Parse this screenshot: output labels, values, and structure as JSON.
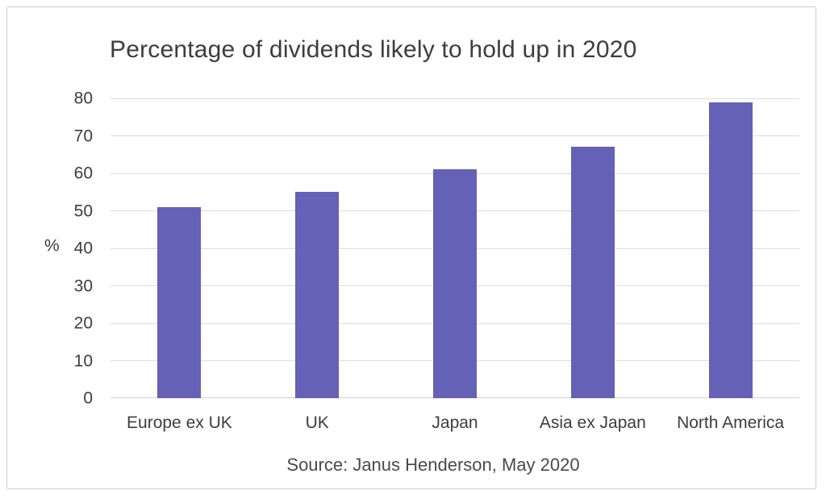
{
  "chart_data": {
    "type": "bar",
    "title": "Percentage of dividends likely to hold up in 2020",
    "categories": [
      "Europe ex UK",
      "UK",
      "Japan",
      "Asia ex Japan",
      "North America"
    ],
    "values": [
      51,
      55,
      61,
      67,
      79
    ],
    "ylabel": "%",
    "ylim": [
      0,
      80
    ],
    "ytick_step": 10,
    "grid": true,
    "legend": false,
    "source": "Source: Janus Henderson, May 2020",
    "colors": {
      "bar": "#6561b6",
      "gridline": "#dcdcdc",
      "text": "#3d3d3d",
      "frame_border": "#c9cdd2"
    }
  }
}
